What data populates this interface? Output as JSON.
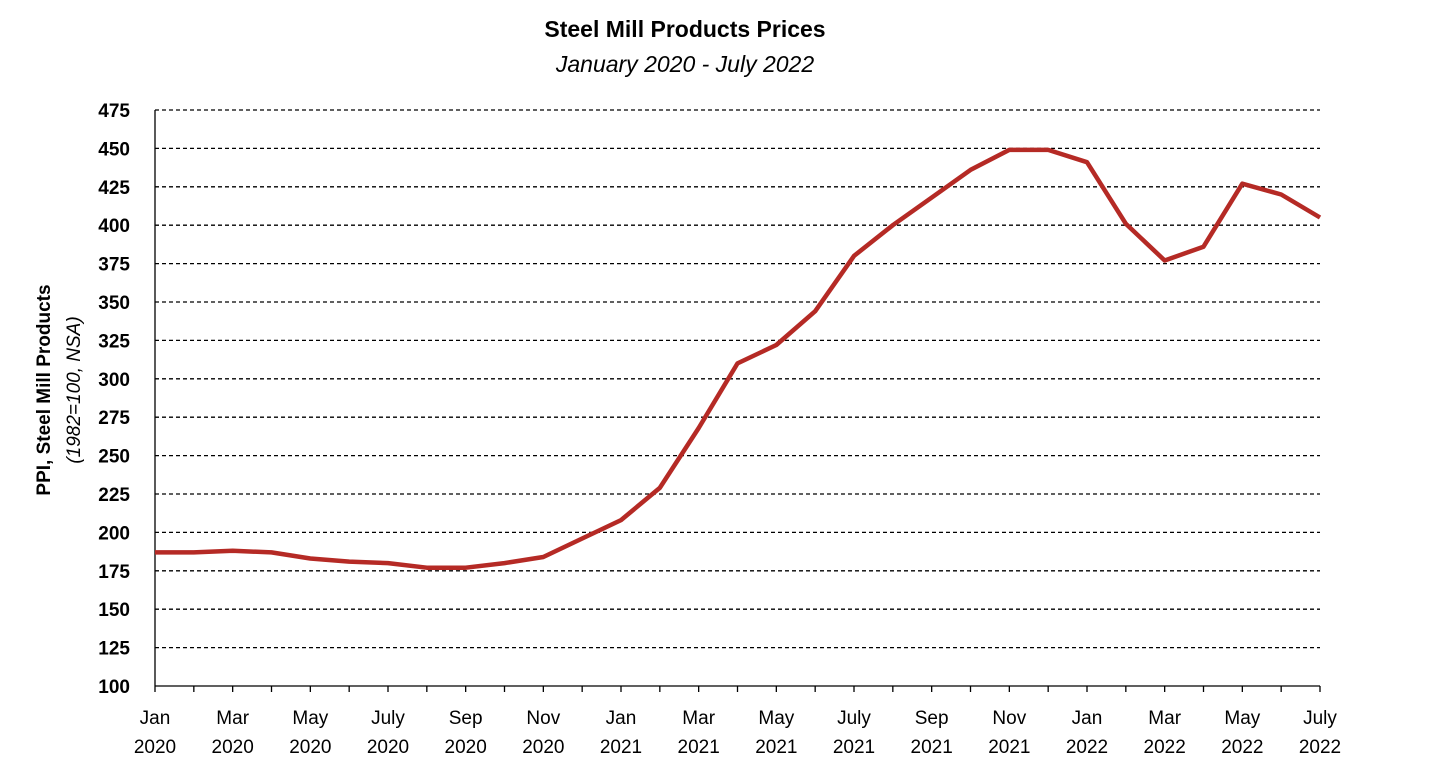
{
  "chart_data": {
    "type": "line",
    "title": "Steel Mill Products Prices",
    "subtitle": "January 2020 - July 2022",
    "ylabel_line1": "PPI, Steel Mill Products",
    "ylabel_line2": "(1982=100, NSA)",
    "xlabel": "",
    "ylim": [
      100,
      475
    ],
    "yticks": [
      100,
      125,
      150,
      175,
      200,
      225,
      250,
      275,
      300,
      325,
      350,
      375,
      400,
      425,
      450,
      475
    ],
    "grid": true,
    "x": [
      "Jan 2020",
      "Feb 2020",
      "Mar 2020",
      "Apr 2020",
      "May 2020",
      "Jun 2020",
      "Jul 2020",
      "Aug 2020",
      "Sep 2020",
      "Oct 2020",
      "Nov 2020",
      "Dec 2020",
      "Jan 2021",
      "Feb 2021",
      "Mar 2021",
      "Apr 2021",
      "May 2021",
      "Jun 2021",
      "Jul 2021",
      "Aug 2021",
      "Sep 2021",
      "Oct 2021",
      "Nov 2021",
      "Dec 2021",
      "Jan 2022",
      "Feb 2022",
      "Mar 2022",
      "Apr 2022",
      "May 2022",
      "Jun 2022",
      "Jul 2022"
    ],
    "xtick_labels": [
      [
        "Jan",
        "2020"
      ],
      [
        "Mar",
        "2020"
      ],
      [
        "May",
        "2020"
      ],
      [
        "July",
        "2020"
      ],
      [
        "Sep",
        "2020"
      ],
      [
        "Nov",
        "2020"
      ],
      [
        "Jan",
        "2021"
      ],
      [
        "Mar",
        "2021"
      ],
      [
        "May",
        "2021"
      ],
      [
        "July",
        "2021"
      ],
      [
        "Sep",
        "2021"
      ],
      [
        "Nov",
        "2021"
      ],
      [
        "Jan",
        "2022"
      ],
      [
        "Mar",
        "2022"
      ],
      [
        "May",
        "2022"
      ],
      [
        "July",
        "2022"
      ]
    ],
    "series": [
      {
        "color": "#b52a25",
        "values": [
          187,
          187,
          188,
          187,
          183,
          181,
          180,
          177,
          177,
          180,
          184,
          196,
          208,
          229,
          268,
          310,
          322,
          344,
          380,
          400,
          418,
          436,
          449,
          449,
          441,
          401,
          377,
          386,
          427,
          420,
          405
        ]
      }
    ]
  }
}
